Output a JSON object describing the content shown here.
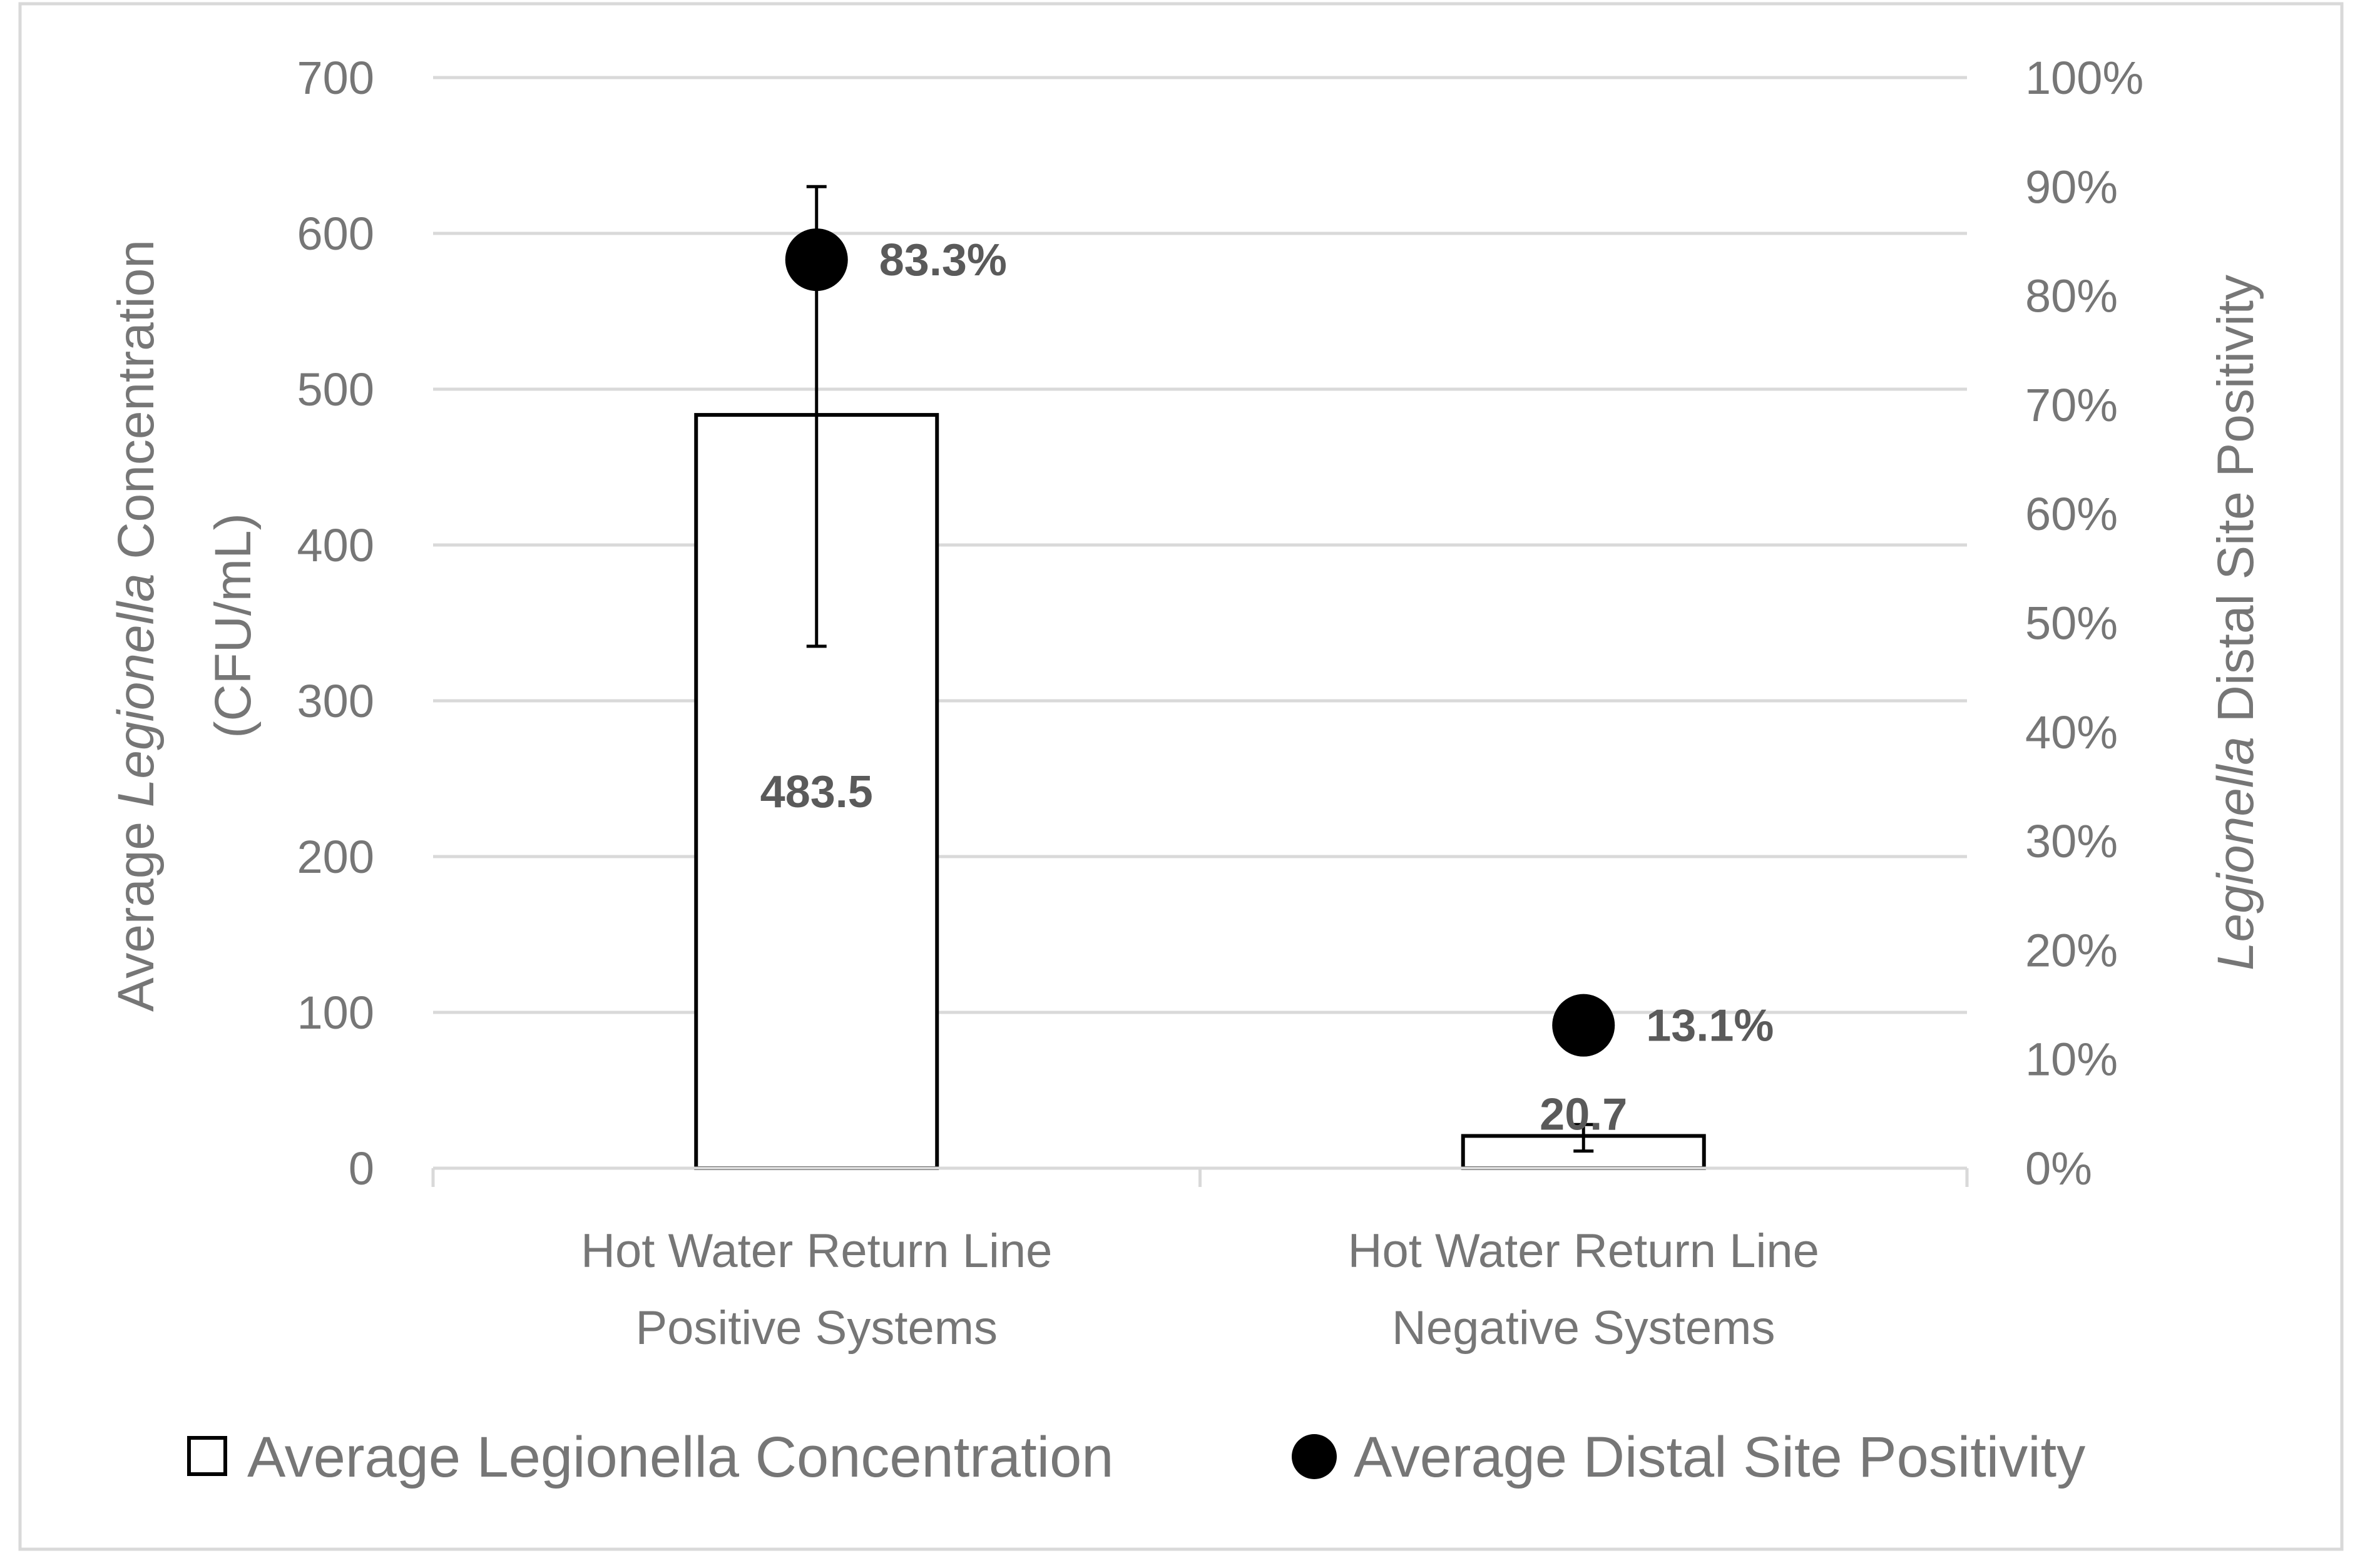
{
  "chart_data": {
    "type": "bar",
    "categories": [
      [
        "Hot Water Return Line",
        "Positive Systems"
      ],
      [
        "Hot Water Return Line",
        "Negative Systems"
      ]
    ],
    "series": [
      {
        "name": "Average Legionella Concentration",
        "axis": "left",
        "kind": "bar",
        "values": [
          483.5,
          20.7
        ],
        "labels": [
          "483.5",
          "20.7"
        ],
        "error_low": [
          335,
          11
        ],
        "error_high": [
          630,
          28
        ]
      },
      {
        "name": "Average Distal Site Positivity",
        "axis": "right",
        "kind": "marker",
        "values": [
          83.3,
          13.1
        ],
        "labels": [
          "83.3%",
          "13.1%"
        ]
      }
    ],
    "left_axis": {
      "title_pre": "Average ",
      "title_italic": "Legionella",
      "title_post": " Concentration",
      "title_line2": "(CFU/mL)",
      "min": 0,
      "max": 700,
      "ticks": [
        "0",
        "100",
        "200",
        "300",
        "400",
        "500",
        "600",
        "700"
      ]
    },
    "right_axis": {
      "title_italic": "Legionella",
      "title_post": " Distal Site Positivity",
      "min": 0,
      "max": 100,
      "ticks": [
        "0%",
        "10%",
        "20%",
        "30%",
        "40%",
        "50%",
        "60%",
        "70%",
        "80%",
        "90%",
        "100%"
      ]
    },
    "grid": true,
    "legend_position": "bottom",
    "legend": [
      {
        "label": "Average Legionella Concentration",
        "symbol": "open-square"
      },
      {
        "label": "Average Distal Site Positivity",
        "symbol": "filled-circle"
      }
    ]
  },
  "colors": {
    "text": "#767676",
    "data_label": "#5a5a5a",
    "grid": "#d9d9d9",
    "bar_fill": "#ffffff",
    "bar_stroke": "#000000",
    "marker": "#000000"
  }
}
